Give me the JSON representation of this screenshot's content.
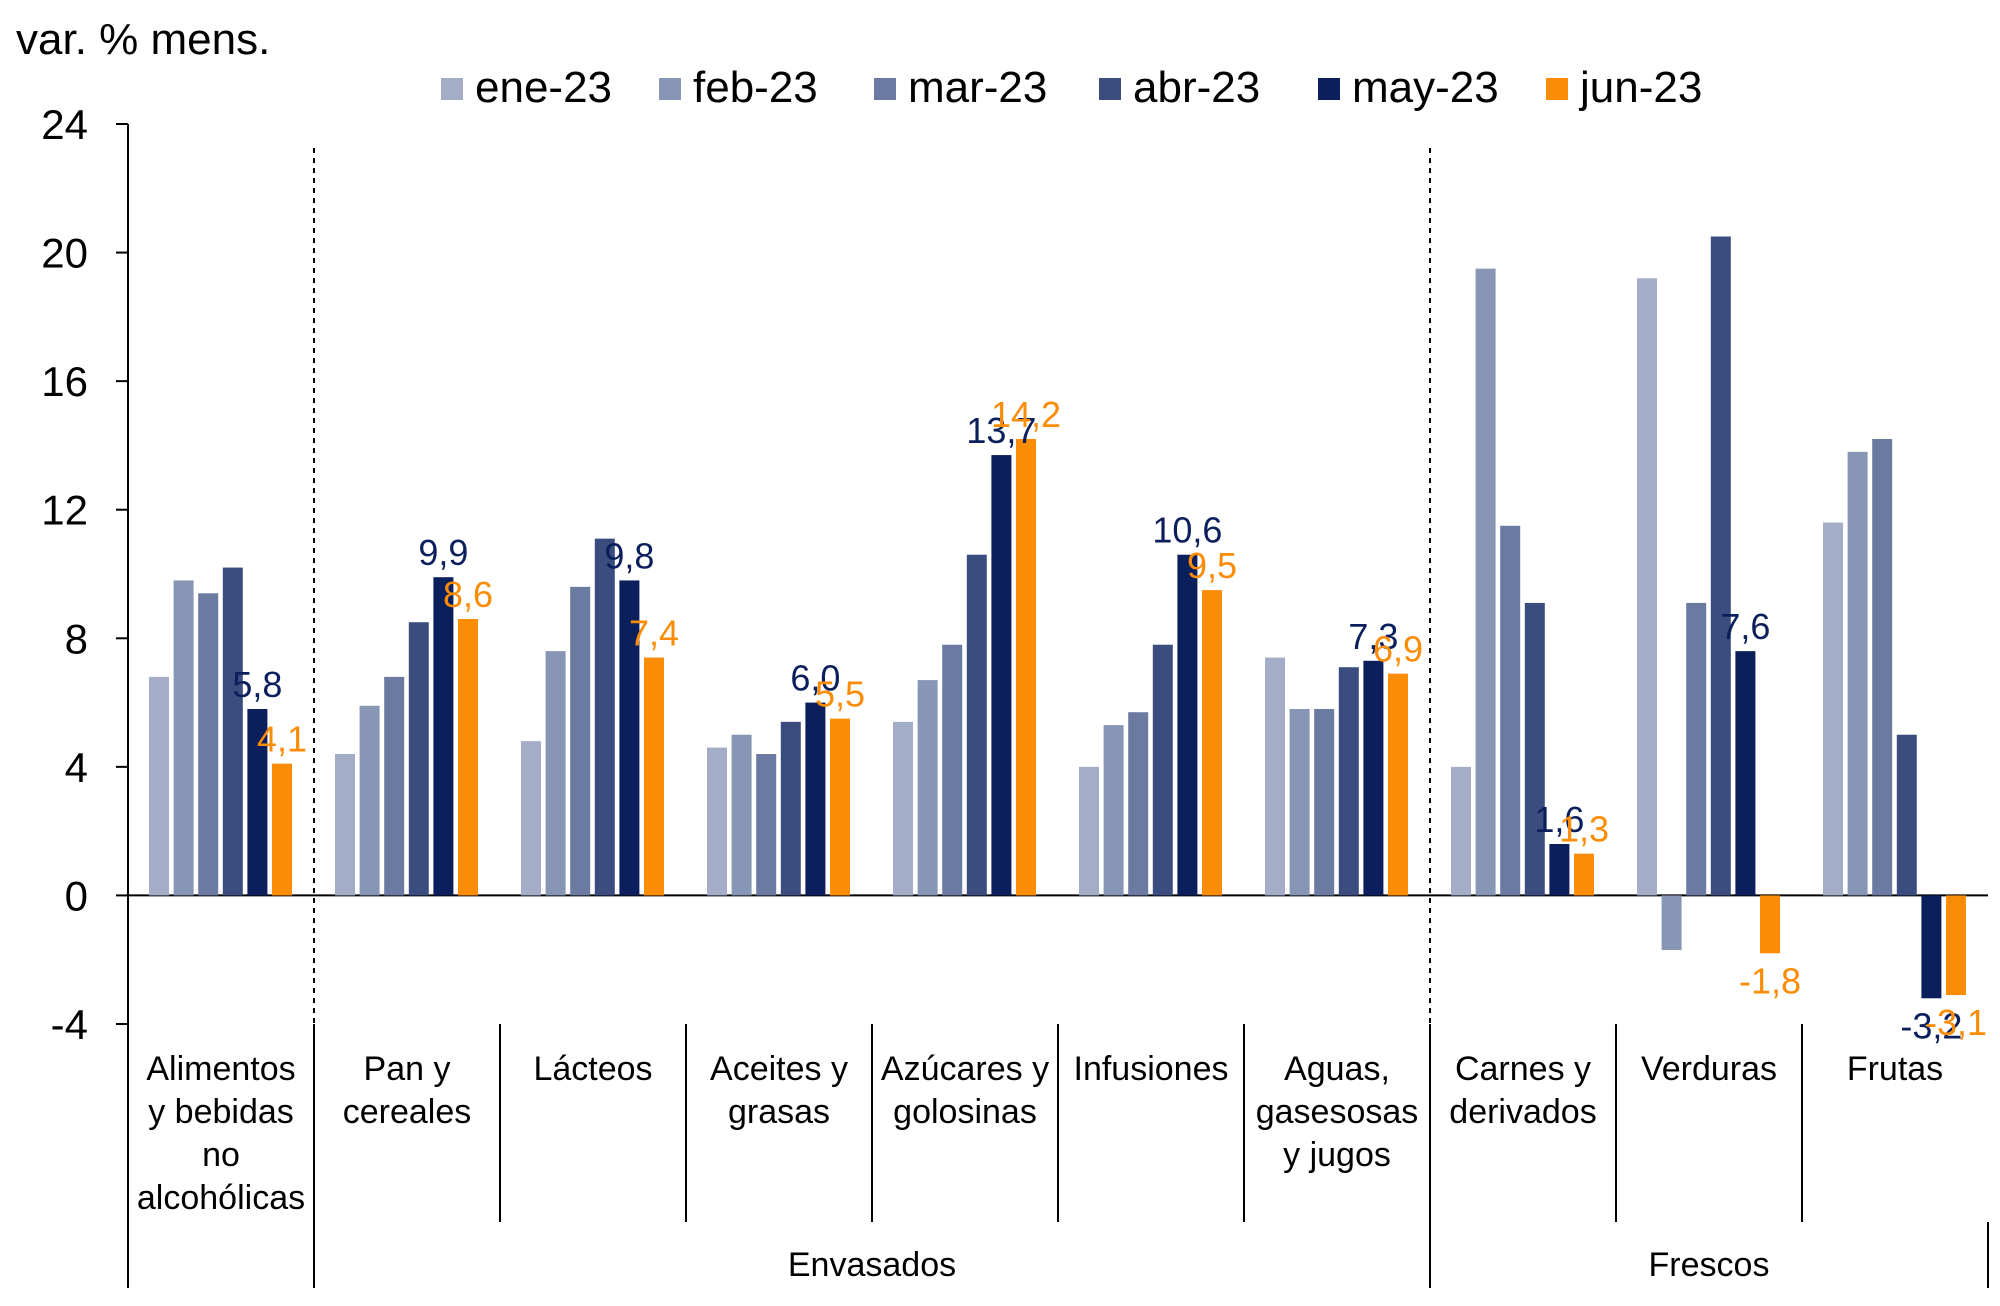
{
  "chart_data": {
    "type": "bar",
    "ylabel": "var. % mens.",
    "ylim": [
      -4,
      24
    ],
    "yticks": [
      "24",
      "20",
      "16",
      "12",
      "8",
      "4",
      "0",
      "-4"
    ],
    "legend_position": "top",
    "series": [
      {
        "name": "ene-23",
        "color": "#a3adc8",
        "values": [
          6.8,
          4.4,
          4.8,
          4.6,
          5.4,
          4.0,
          7.4,
          4.0,
          19.2,
          11.6
        ]
      },
      {
        "name": "feb-23",
        "color": "#8896b6",
        "values": [
          9.8,
          5.9,
          7.6,
          5.0,
          6.7,
          5.3,
          5.8,
          19.5,
          -1.7,
          13.8
        ]
      },
      {
        "name": "mar-23",
        "color": "#6b7aa0",
        "values": [
          9.4,
          6.8,
          9.6,
          4.4,
          7.8,
          5.7,
          5.8,
          11.5,
          9.1,
          14.2
        ]
      },
      {
        "name": "abr-23",
        "color": "#3b4d7e",
        "values": [
          10.2,
          8.5,
          11.1,
          5.4,
          10.6,
          7.8,
          7.1,
          9.1,
          20.5,
          5.0
        ]
      },
      {
        "name": "may-23",
        "color": "#0b1f5c",
        "values": [
          5.8,
          9.9,
          9.8,
          6.0,
          13.7,
          10.6,
          7.3,
          1.6,
          7.6,
          -3.2
        ]
      },
      {
        "name": "jun-23",
        "color": "#fb8c06",
        "values": [
          4.1,
          8.6,
          7.4,
          5.5,
          14.2,
          9.5,
          6.9,
          1.3,
          -1.8,
          -3.1
        ]
      }
    ],
    "categories": [
      [
        "Alimentos",
        "y bebidas",
        "no",
        "alcohólicas"
      ],
      [
        "Pan y",
        "cereales"
      ],
      [
        "Lácteos"
      ],
      [
        "Aceites y",
        "grasas"
      ],
      [
        "Azúcares y",
        "golosinas"
      ],
      [
        "Infusiones"
      ],
      [
        "Aguas,",
        "gasesosas",
        "y jugos"
      ],
      [
        "Carnes y",
        "derivados"
      ],
      [
        "Verduras"
      ],
      [
        "Frutas"
      ]
    ],
    "groups": [
      {
        "label": "Envasados",
        "start": 1,
        "end": 6
      },
      {
        "label": "Frescos",
        "start": 7,
        "end": 9
      }
    ],
    "data_labels": [
      {
        "cat": 0,
        "series": 4,
        "text": "5,8"
      },
      {
        "cat": 0,
        "series": 5,
        "text": "4,1"
      },
      {
        "cat": 1,
        "series": 4,
        "text": "9,9"
      },
      {
        "cat": 1,
        "series": 5,
        "text": "8,6"
      },
      {
        "cat": 2,
        "series": 4,
        "text": "9,8"
      },
      {
        "cat": 2,
        "series": 5,
        "text": "7,4"
      },
      {
        "cat": 3,
        "series": 4,
        "text": "6,0"
      },
      {
        "cat": 3,
        "series": 5,
        "text": "5,5"
      },
      {
        "cat": 4,
        "series": 4,
        "text": "13,7"
      },
      {
        "cat": 4,
        "series": 5,
        "text": "14,2"
      },
      {
        "cat": 5,
        "series": 4,
        "text": "10,6"
      },
      {
        "cat": 5,
        "series": 5,
        "text": "9,5"
      },
      {
        "cat": 6,
        "series": 4,
        "text": "7,3"
      },
      {
        "cat": 6,
        "series": 5,
        "text": "6,9"
      },
      {
        "cat": 7,
        "series": 4,
        "text": "1,6"
      },
      {
        "cat": 7,
        "series": 5,
        "text": "1,3"
      },
      {
        "cat": 8,
        "series": 4,
        "text": "7,6"
      },
      {
        "cat": 8,
        "series": 5,
        "text": "-1,8"
      },
      {
        "cat": 9,
        "series": 4,
        "text": "-3,2"
      },
      {
        "cat": 9,
        "series": 5,
        "text": "-3,1"
      }
    ]
  }
}
